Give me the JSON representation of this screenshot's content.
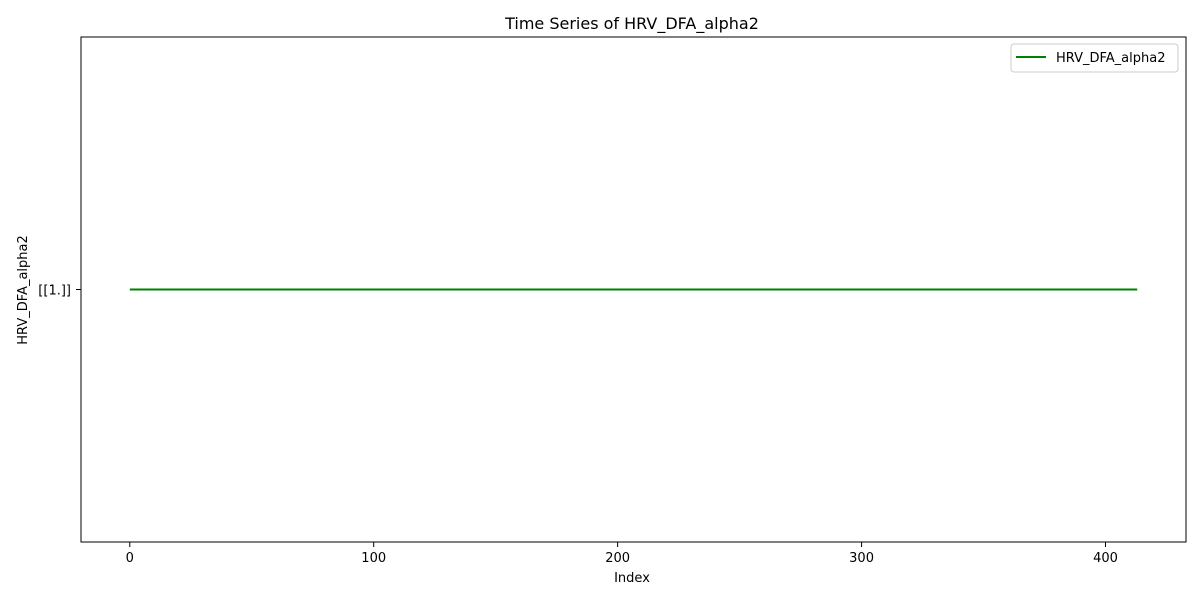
{
  "chart_data": {
    "type": "line",
    "title": "Time Series of HRV_DFA_alpha2",
    "xlabel": "Index",
    "ylabel": "HRV_DFA_alpha2",
    "xlim": [
      -20,
      433
    ],
    "x_ticks": [
      0,
      100,
      200,
      300,
      400
    ],
    "x_tick_labels": [
      "0",
      "100",
      "200",
      "300",
      "400"
    ],
    "ylim": [
      0,
      2
    ],
    "y_ticks": [
      1
    ],
    "y_tick_labels": [
      "[[1.]]"
    ],
    "grid": false,
    "legend": "top-right",
    "series": [
      {
        "name": "HRV_DFA_alpha2",
        "color": "#008000",
        "x": [
          0,
          413
        ],
        "values": [
          1,
          1
        ]
      }
    ]
  }
}
